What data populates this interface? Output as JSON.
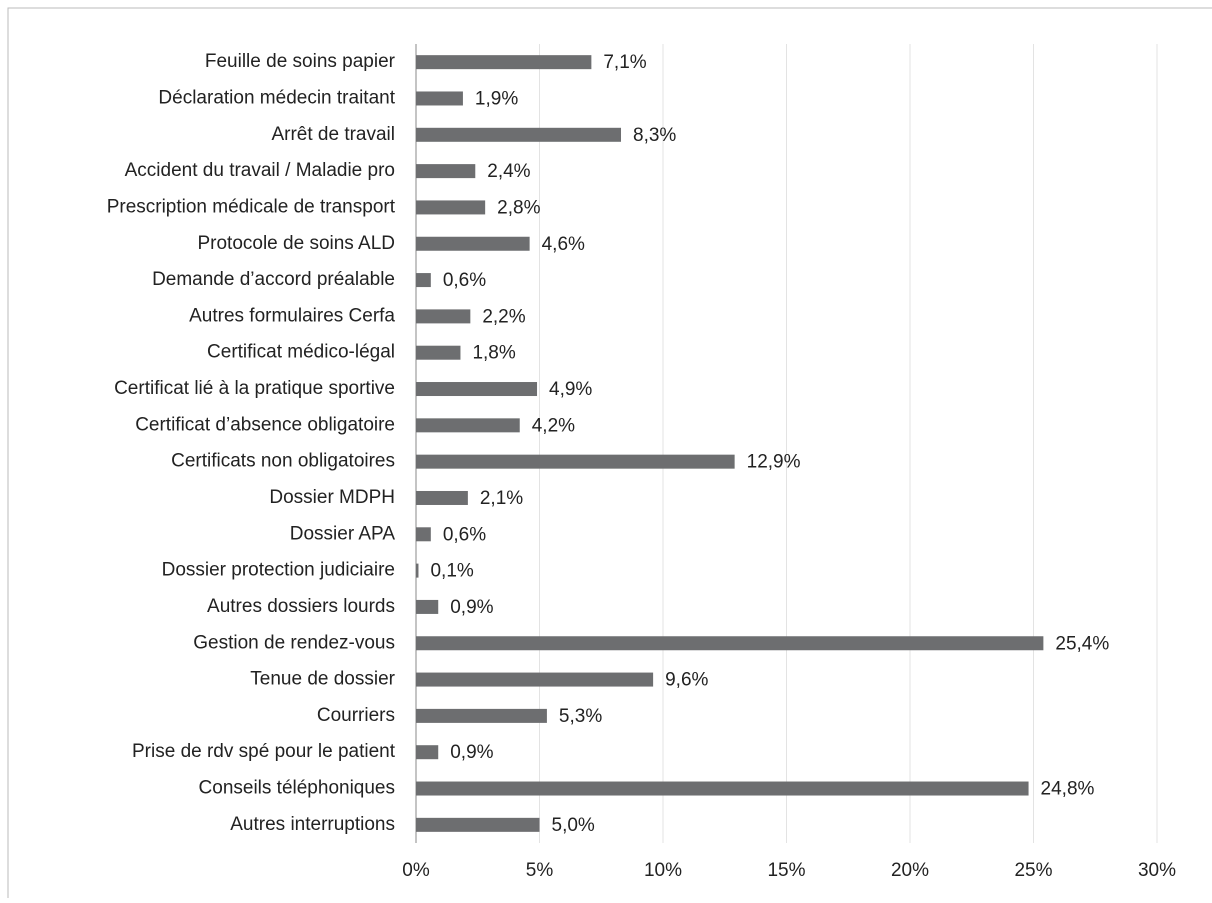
{
  "chart_data": {
    "type": "barh",
    "categories": [
      "Feuille de soins papier",
      "Déclaration médecin traitant",
      "Arrêt de travail",
      "Accident du travail / Maladie pro",
      "Prescription médicale de transport",
      "Protocole de soins ALD",
      "Demande d’accord préalable",
      "Autres formulaires Cerfa",
      "Certificat médico-légal",
      "Certificat lié à la pratique sportive",
      "Certificat d’absence obligatoire",
      "Certificats non obligatoires",
      "Dossier MDPH",
      "Dossier APA",
      "Dossier protection judiciaire",
      "Autres dossiers lourds",
      "Gestion de rendez-vous",
      "Tenue de dossier",
      "Courriers",
      "Prise de rdv spé pour le patient",
      "Conseils téléphoniques",
      "Autres interruptions"
    ],
    "values": [
      7.1,
      1.9,
      8.3,
      2.4,
      2.8,
      4.6,
      0.6,
      2.2,
      1.8,
      4.9,
      4.2,
      12.9,
      2.1,
      0.6,
      0.1,
      0.9,
      25.4,
      9.6,
      5.3,
      0.9,
      24.8,
      5.0
    ],
    "value_labels": [
      "7,1%",
      "1,9%",
      "8,3%",
      "2,4%",
      "2,8%",
      "4,6%",
      "0,6%",
      "2,2%",
      "1,8%",
      "4,9%",
      "4,2%",
      "12,9%",
      "2,1%",
      "0,6%",
      "0,1%",
      "0,9%",
      "25,4%",
      "9,6%",
      "5,3%",
      "0,9%",
      "24,8%",
      "5,0%"
    ],
    "color": "#6d6e70",
    "xlim": [
      0,
      30
    ],
    "xticks": [
      {
        "value": 0,
        "label": "0%"
      },
      {
        "value": 5,
        "label": "5%"
      },
      {
        "value": 10,
        "label": "10%"
      },
      {
        "value": 15,
        "label": "15%"
      },
      {
        "value": 20,
        "label": "20%"
      },
      {
        "value": 25,
        "label": "25%"
      },
      {
        "value": 30,
        "label": "30%"
      }
    ],
    "grid": true
  }
}
